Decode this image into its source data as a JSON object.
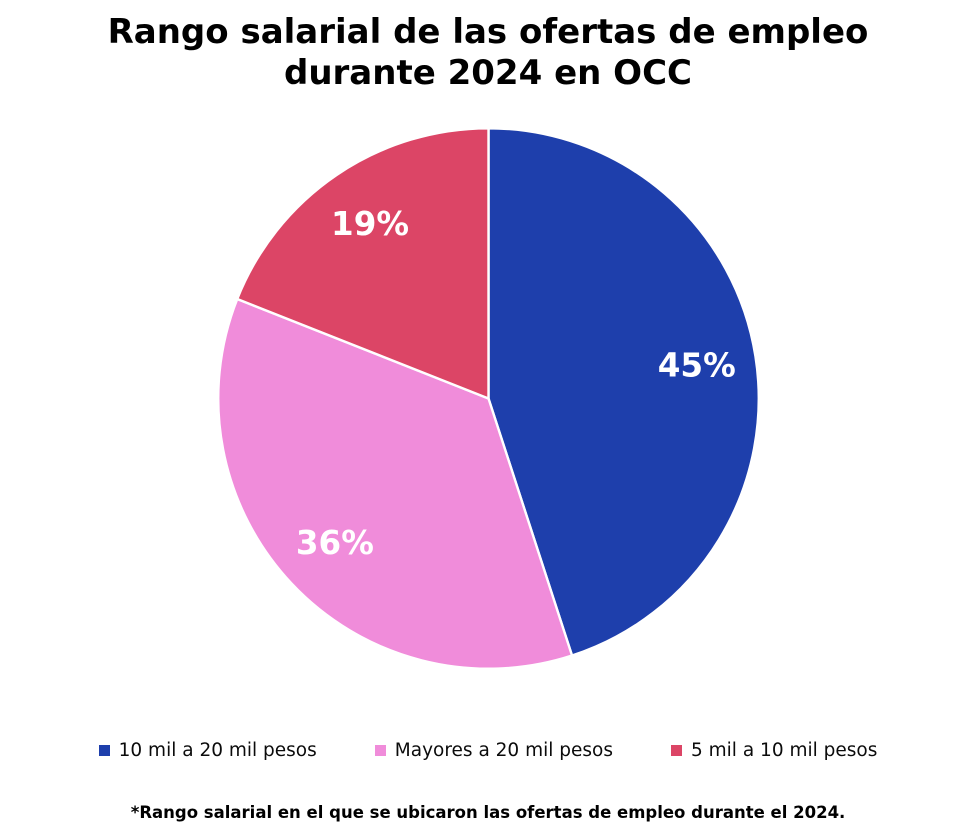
{
  "chart_data": {
    "type": "pie",
    "title": "Rango salarial de las ofertas de empleo durante 2024 en OCC",
    "slices": [
      {
        "label": "10 mil a 20 mil pesos",
        "value": 45,
        "display": "45%",
        "color": "#1e3fac"
      },
      {
        "label": "Mayores a 20 mil pesos",
        "value": 36,
        "display": "36%",
        "color": "#f08cda"
      },
      {
        "label": "5 mil a 10 mil pesos",
        "value": 19,
        "display": "19%",
        "color": "#dc4566"
      }
    ],
    "start_angle_deg": 0,
    "direction": "clockwise",
    "slice_border_color": "#ffffff",
    "slice_label_color": "#ffffff",
    "legend_position": "bottom",
    "footnote": "*Rango salarial en el que se ubicaron las ofertas de empleo durante el 2024."
  }
}
